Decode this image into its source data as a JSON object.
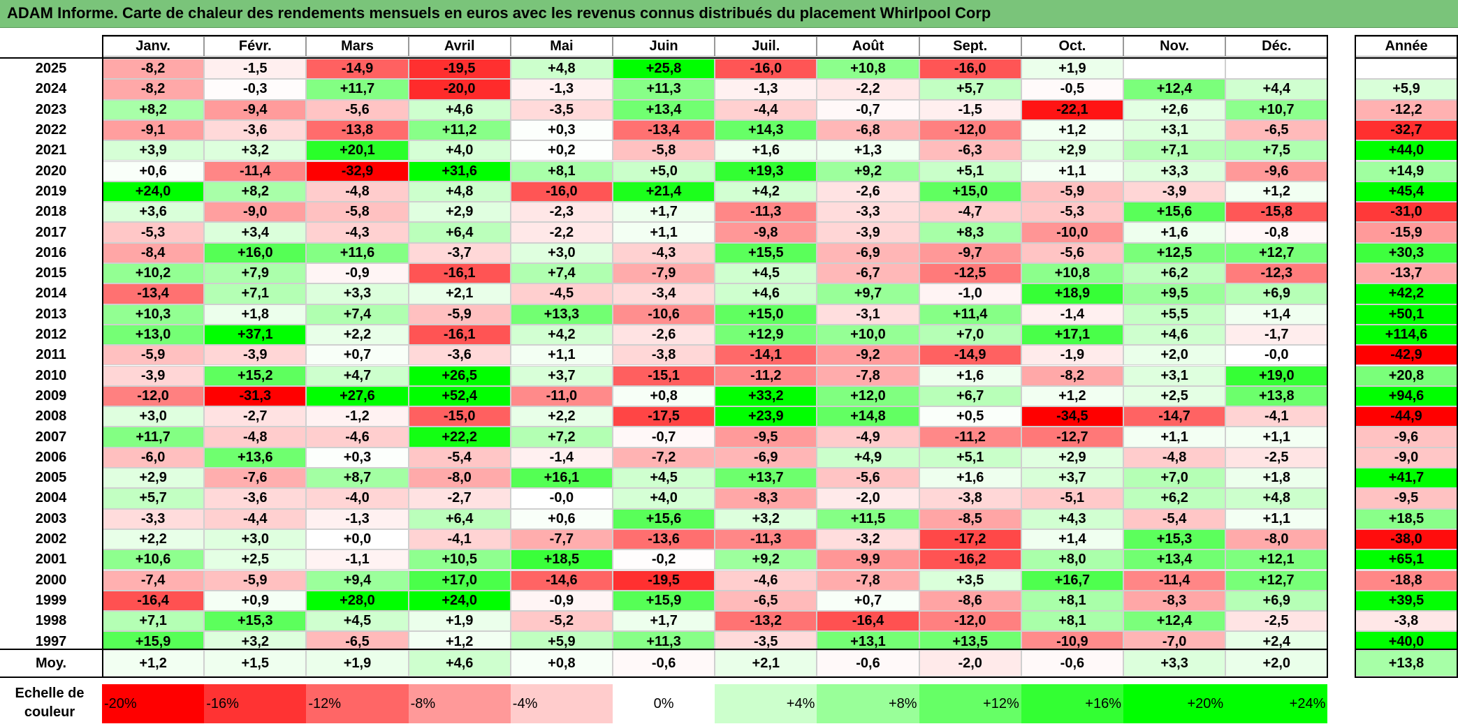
{
  "chart_data": {
    "type": "heatmap",
    "title": "ADAM Informe. Carte de chaleur des rendements mensuels en euros avec les revenus connus distribués du placement Whirlpool Corp",
    "months": [
      "Janv.",
      "Févr.",
      "Mars",
      "Avril",
      "Mai",
      "Juin",
      "Juil.",
      "Août",
      "Sept.",
      "Oct.",
      "Nov.",
      "Déc."
    ],
    "annual_header": "Année",
    "rows": [
      {
        "year": "2025",
        "values": [
          "-8,2",
          "-1,5",
          "-14,9",
          "-19,5",
          "+4,8",
          "+25,8",
          "-16,0",
          "+10,8",
          "-16,0",
          "+1,9",
          "",
          ""
        ],
        "annual": ""
      },
      {
        "year": "2024",
        "values": [
          "-8,2",
          "-0,3",
          "+11,7",
          "-20,0",
          "-1,3",
          "+11,3",
          "-1,3",
          "-2,2",
          "+5,7",
          "-0,5",
          "+12,4",
          "+4,4"
        ],
        "annual": "+5,9"
      },
      {
        "year": "2023",
        "values": [
          "+8,2",
          "-9,4",
          "-5,6",
          "+4,6",
          "-3,5",
          "+13,4",
          "-4,4",
          "-0,7",
          "-1,5",
          "-22,1",
          "+2,6",
          "+10,7"
        ],
        "annual": "-12,2"
      },
      {
        "year": "2022",
        "values": [
          "-9,1",
          "-3,6",
          "-13,8",
          "+11,2",
          "+0,3",
          "-13,4",
          "+14,3",
          "-6,8",
          "-12,0",
          "+1,2",
          "+3,1",
          "-6,5"
        ],
        "annual": "-32,7"
      },
      {
        "year": "2021",
        "values": [
          "+3,9",
          "+3,2",
          "+20,1",
          "+4,0",
          "+0,2",
          "-5,8",
          "+1,6",
          "+1,3",
          "-6,3",
          "+2,9",
          "+7,1",
          "+7,5"
        ],
        "annual": "+44,0"
      },
      {
        "year": "2020",
        "values": [
          "+0,6",
          "-11,4",
          "-32,9",
          "+31,6",
          "+8,1",
          "+5,0",
          "+19,3",
          "+9,2",
          "+5,1",
          "+1,1",
          "+3,3",
          "-9,6"
        ],
        "annual": "+14,9"
      },
      {
        "year": "2019",
        "values": [
          "+24,0",
          "+8,2",
          "-4,8",
          "+4,8",
          "-16,0",
          "+21,4",
          "+4,2",
          "-2,6",
          "+15,0",
          "-5,9",
          "-3,9",
          "+1,2"
        ],
        "annual": "+45,4"
      },
      {
        "year": "2018",
        "values": [
          "+3,6",
          "-9,0",
          "-5,8",
          "+2,9",
          "-2,3",
          "+1,7",
          "-11,3",
          "-3,3",
          "-4,7",
          "-5,3",
          "+15,6",
          "-15,8"
        ],
        "annual": "-31,0"
      },
      {
        "year": "2017",
        "values": [
          "-5,3",
          "+3,4",
          "-4,3",
          "+6,4",
          "-2,2",
          "+1,1",
          "-9,8",
          "-3,9",
          "+8,3",
          "-10,0",
          "+1,6",
          "-0,8"
        ],
        "annual": "-15,9"
      },
      {
        "year": "2016",
        "values": [
          "-8,4",
          "+16,0",
          "+11,6",
          "-3,7",
          "+3,0",
          "-4,3",
          "+15,5",
          "-6,9",
          "-9,7",
          "-5,6",
          "+12,5",
          "+12,7"
        ],
        "annual": "+30,3"
      },
      {
        "year": "2015",
        "values": [
          "+10,2",
          "+7,9",
          "-0,9",
          "-16,1",
          "+7,4",
          "-7,9",
          "+4,5",
          "-6,7",
          "-12,5",
          "+10,8",
          "+6,2",
          "-12,3"
        ],
        "annual": "-13,7"
      },
      {
        "year": "2014",
        "values": [
          "-13,4",
          "+7,1",
          "+3,3",
          "+2,1",
          "-4,5",
          "-3,4",
          "+4,6",
          "+9,7",
          "-1,0",
          "+18,9",
          "+9,5",
          "+6,9"
        ],
        "annual": "+42,2"
      },
      {
        "year": "2013",
        "values": [
          "+10,3",
          "+1,8",
          "+7,4",
          "-5,9",
          "+13,3",
          "-10,6",
          "+15,0",
          "-3,1",
          "+11,4",
          "-1,4",
          "+5,5",
          "+1,4"
        ],
        "annual": "+50,1"
      },
      {
        "year": "2012",
        "values": [
          "+13,0",
          "+37,1",
          "+2,2",
          "-16,1",
          "+4,2",
          "-2,6",
          "+12,9",
          "+10,0",
          "+7,0",
          "+17,1",
          "+4,6",
          "-1,7"
        ],
        "annual": "+114,6"
      },
      {
        "year": "2011",
        "values": [
          "-5,9",
          "-3,9",
          "+0,7",
          "-3,6",
          "+1,1",
          "-3,8",
          "-14,1",
          "-9,2",
          "-14,9",
          "-1,9",
          "+2,0",
          "-0,0"
        ],
        "annual": "-42,9"
      },
      {
        "year": "2010",
        "values": [
          "-3,9",
          "+15,2",
          "+4,7",
          "+26,5",
          "+3,7",
          "-15,1",
          "-11,2",
          "-7,8",
          "+1,6",
          "-8,2",
          "+3,1",
          "+19,0"
        ],
        "annual": "+20,8"
      },
      {
        "year": "2009",
        "values": [
          "-12,0",
          "-31,3",
          "+27,6",
          "+52,4",
          "-11,0",
          "+0,8",
          "+33,2",
          "+12,0",
          "+6,7",
          "+1,2",
          "+2,5",
          "+13,8"
        ],
        "annual": "+94,6"
      },
      {
        "year": "2008",
        "values": [
          "+3,0",
          "-2,7",
          "-1,2",
          "-15,0",
          "+2,2",
          "-17,5",
          "+23,9",
          "+14,8",
          "+0,5",
          "-34,5",
          "-14,7",
          "-4,1"
        ],
        "annual": "-44,9"
      },
      {
        "year": "2007",
        "values": [
          "+11,7",
          "-4,8",
          "-4,6",
          "+22,2",
          "+7,2",
          "-0,7",
          "-9,5",
          "-4,9",
          "-11,2",
          "-12,7",
          "+1,1",
          "+1,1"
        ],
        "annual": "-9,6"
      },
      {
        "year": "2006",
        "values": [
          "-6,0",
          "+13,6",
          "+0,3",
          "-5,4",
          "-1,4",
          "-7,2",
          "-6,9",
          "+4,9",
          "+5,1",
          "+2,9",
          "-4,8",
          "-2,5"
        ],
        "annual": "-9,0"
      },
      {
        "year": "2005",
        "values": [
          "+2,9",
          "-7,6",
          "+8,7",
          "-8,0",
          "+16,1",
          "+4,5",
          "+13,7",
          "-5,6",
          "+1,6",
          "+3,7",
          "+7,0",
          "+1,8"
        ],
        "annual": "+41,7"
      },
      {
        "year": "2004",
        "values": [
          "+5,7",
          "-3,6",
          "-4,0",
          "-2,7",
          "-0,0",
          "+4,0",
          "-8,3",
          "-2,0",
          "-3,8",
          "-5,1",
          "+6,2",
          "+4,8"
        ],
        "annual": "-9,5"
      },
      {
        "year": "2003",
        "values": [
          "-3,3",
          "-4,4",
          "-1,3",
          "+6,4",
          "+0,6",
          "+15,6",
          "+3,2",
          "+11,5",
          "-8,5",
          "+4,3",
          "-5,4",
          "+1,1"
        ],
        "annual": "+18,5"
      },
      {
        "year": "2002",
        "values": [
          "+2,2",
          "+3,0",
          "+0,0",
          "-4,1",
          "-7,7",
          "-13,6",
          "-11,3",
          "-3,2",
          "-17,2",
          "+1,4",
          "+15,3",
          "-8,0"
        ],
        "annual": "-38,0"
      },
      {
        "year": "2001",
        "values": [
          "+10,6",
          "+2,5",
          "-1,1",
          "+10,5",
          "+18,5",
          "-0,2",
          "+9,2",
          "-9,9",
          "-16,2",
          "+8,0",
          "+13,4",
          "+12,1"
        ],
        "annual": "+65,1"
      },
      {
        "year": "2000",
        "values": [
          "-7,4",
          "-5,9",
          "+9,4",
          "+17,0",
          "-14,6",
          "-19,5",
          "-4,6",
          "-7,8",
          "+3,5",
          "+16,7",
          "-11,4",
          "+12,7"
        ],
        "annual": "-18,8"
      },
      {
        "year": "1999",
        "values": [
          "-16,4",
          "+0,9",
          "+28,0",
          "+24,0",
          "-0,9",
          "+15,9",
          "-6,5",
          "+0,7",
          "-8,6",
          "+8,1",
          "-8,3",
          "+6,9"
        ],
        "annual": "+39,5"
      },
      {
        "year": "1998",
        "values": [
          "+7,1",
          "+15,3",
          "+4,5",
          "+1,9",
          "-5,2",
          "+1,7",
          "-13,2",
          "-16,4",
          "-12,0",
          "+8,1",
          "+12,4",
          "-2,5"
        ],
        "annual": "-3,8"
      },
      {
        "year": "1997",
        "values": [
          "+15,9",
          "+3,2",
          "-6,5",
          "+1,2",
          "+5,9",
          "+11,3",
          "-3,5",
          "+13,1",
          "+13,5",
          "-10,9",
          "-7,0",
          "+2,4"
        ],
        "annual": "+40,0"
      }
    ],
    "average": {
      "label": "Moy.",
      "values": [
        "+1,2",
        "+1,5",
        "+1,9",
        "+4,6",
        "+0,8",
        "-0,6",
        "+2,1",
        "-0,6",
        "-2,0",
        "-0,6",
        "+3,3",
        "+2,0"
      ],
      "annual": "+13,8"
    },
    "color_scale": {
      "label_line1": "Echelle de",
      "label_line2": "couleur",
      "stops": [
        "-20%",
        "-16%",
        "-12%",
        "-8%",
        "-4%",
        "0%",
        "+4%",
        "+8%",
        "+12%",
        "+16%",
        "+20%",
        "+24%"
      ],
      "stop_values": [
        -20,
        -16,
        -12,
        -8,
        -4,
        0,
        4,
        8,
        12,
        16,
        20,
        24
      ],
      "colors": {
        "negative": "#ff0000",
        "zero": "#ffffff",
        "positive": "#00ff00"
      }
    }
  }
}
